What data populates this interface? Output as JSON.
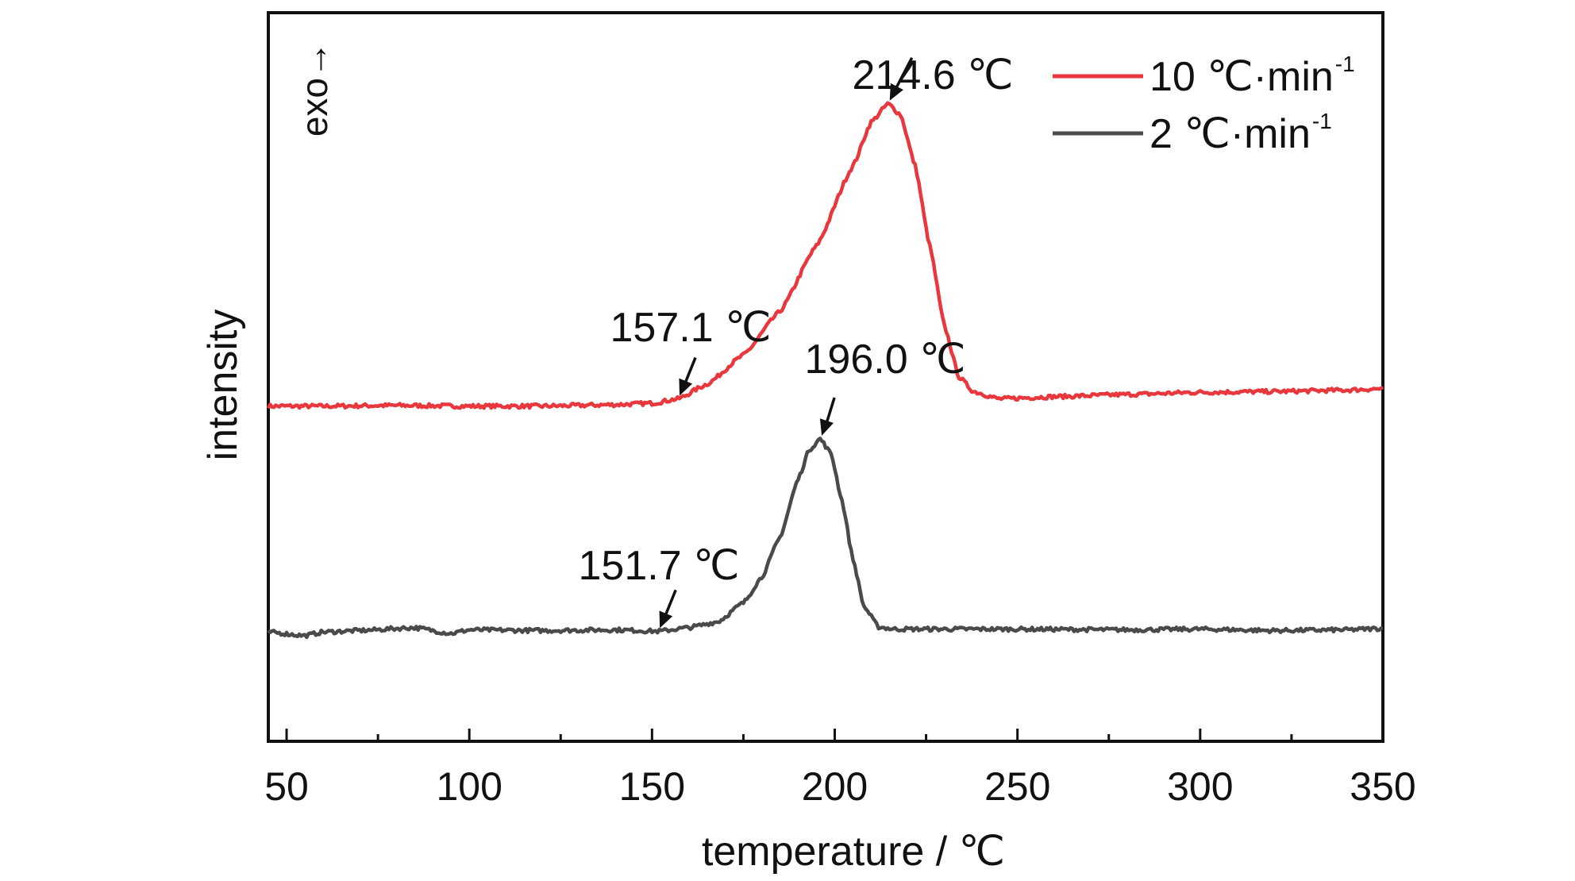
{
  "chart_data": {
    "type": "line",
    "xlabel": "temperature / ℃",
    "ylabel": "intensity",
    "xlim": [
      45,
      350
    ],
    "ylim": [
      0,
      100
    ],
    "y_axis_ticks": false,
    "x_ticks": [
      50,
      100,
      150,
      200,
      250,
      300,
      350
    ],
    "x_tick_labels": [
      "50",
      "100",
      "150",
      "200",
      "250",
      "300",
      "350"
    ],
    "direction_note": "exo→",
    "grid": false,
    "legend_position": "top-right",
    "series": [
      {
        "name": "10 ℃·min",
        "name_sup": "-1",
        "color": "#e8383d",
        "points": [
          [
            45,
            46
          ],
          [
            60,
            46
          ],
          [
            80,
            46.1
          ],
          [
            100,
            46
          ],
          [
            120,
            46
          ],
          [
            140,
            46.2
          ],
          [
            150,
            46.4
          ],
          [
            157.1,
            47
          ],
          [
            165,
            49
          ],
          [
            175,
            53
          ],
          [
            185,
            59
          ],
          [
            195,
            68
          ],
          [
            205,
            79
          ],
          [
            210,
            85
          ],
          [
            214.6,
            87.5
          ],
          [
            218,
            86
          ],
          [
            222,
            79
          ],
          [
            226,
            68
          ],
          [
            230,
            57
          ],
          [
            234,
            50
          ],
          [
            238,
            48
          ],
          [
            245,
            47
          ],
          [
            260,
            47.3
          ],
          [
            280,
            47.6
          ],
          [
            300,
            47.9
          ],
          [
            320,
            48
          ],
          [
            340,
            48.2
          ],
          [
            350,
            48.4
          ]
        ]
      },
      {
        "name": "2 ℃·min",
        "name_sup": "-1",
        "color": "#4a4a4a",
        "points": [
          [
            45,
            15
          ],
          [
            55,
            14.5
          ],
          [
            60,
            15
          ],
          [
            70,
            15.2
          ],
          [
            85,
            15.6
          ],
          [
            95,
            14.8
          ],
          [
            100,
            15.3
          ],
          [
            120,
            15.2
          ],
          [
            140,
            15.3
          ],
          [
            151.7,
            15.1
          ],
          [
            160,
            15.6
          ],
          [
            168,
            16.4
          ],
          [
            175,
            19
          ],
          [
            180,
            22.5
          ],
          [
            185,
            28
          ],
          [
            190,
            36
          ],
          [
            193,
            40
          ],
          [
            196,
            41.5
          ],
          [
            199,
            39.5
          ],
          [
            202,
            33
          ],
          [
            205,
            25
          ],
          [
            208,
            18.5
          ],
          [
            212,
            15.7
          ],
          [
            216,
            15.4
          ],
          [
            250,
            15.4
          ],
          [
            280,
            15.3
          ],
          [
            300,
            15.4
          ],
          [
            320,
            15.2
          ],
          [
            340,
            15.3
          ],
          [
            350,
            15.5
          ]
        ]
      }
    ],
    "annotations": [
      {
        "label": "214.6 ℃",
        "x": 214.6,
        "series": 0
      },
      {
        "label": "157.1 ℃",
        "x": 157.1,
        "series": 0
      },
      {
        "label": "196.0 ℃",
        "x": 196.0,
        "series": 1
      },
      {
        "label": "151.7 ℃",
        "x": 151.7,
        "series": 1
      }
    ]
  }
}
